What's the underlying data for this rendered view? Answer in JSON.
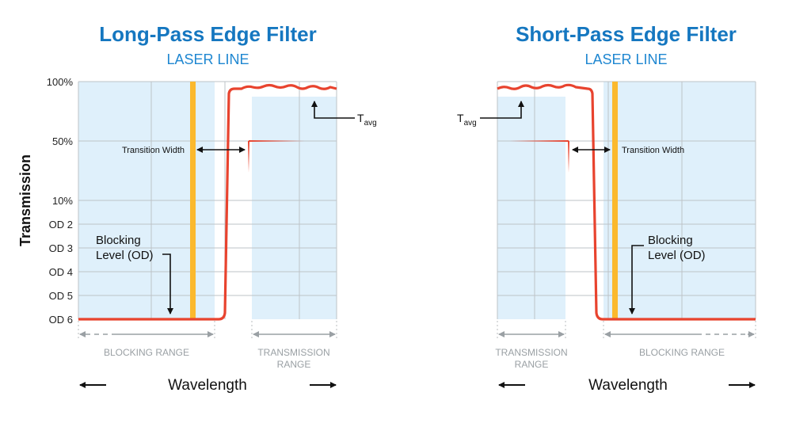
{
  "y_axis": {
    "title": "Transmission",
    "ticks": [
      "100%",
      "50%",
      "10%",
      "OD 2",
      "OD 3",
      "OD 4",
      "OD 5",
      "OD 6"
    ]
  },
  "long_pass": {
    "title": "Long-Pass Edge Filter",
    "subtitle": "LASER LINE",
    "tavg": "T",
    "tavg_sub": "avg",
    "transition_width": "Transition Width",
    "blocking_level_line1": "Blocking",
    "blocking_level_line2": "Level (OD)",
    "blocking_range": "BLOCKING RANGE",
    "transmission_range_line1": "TRANSMISSION",
    "transmission_range_line2": "RANGE",
    "wavelength": "Wavelength"
  },
  "short_pass": {
    "title": "Short-Pass Edge Filter",
    "subtitle": "LASER LINE",
    "tavg": "T",
    "tavg_sub": "avg",
    "transition_width": "Transition Width",
    "blocking_level_line1": "Blocking",
    "blocking_level_line2": "Level (OD)",
    "blocking_range": "BLOCKING RANGE",
    "transmission_range_line1": "TRANSMISSION",
    "transmission_range_line2": "RANGE",
    "wavelength": "Wavelength"
  },
  "colors": {
    "curve": "#e8432e",
    "laser": "#fbb92d",
    "band": "#dff0fb",
    "grid": "#bdc3c7",
    "title": "#1577c0",
    "range_arrow": "#9aa0a4"
  }
}
